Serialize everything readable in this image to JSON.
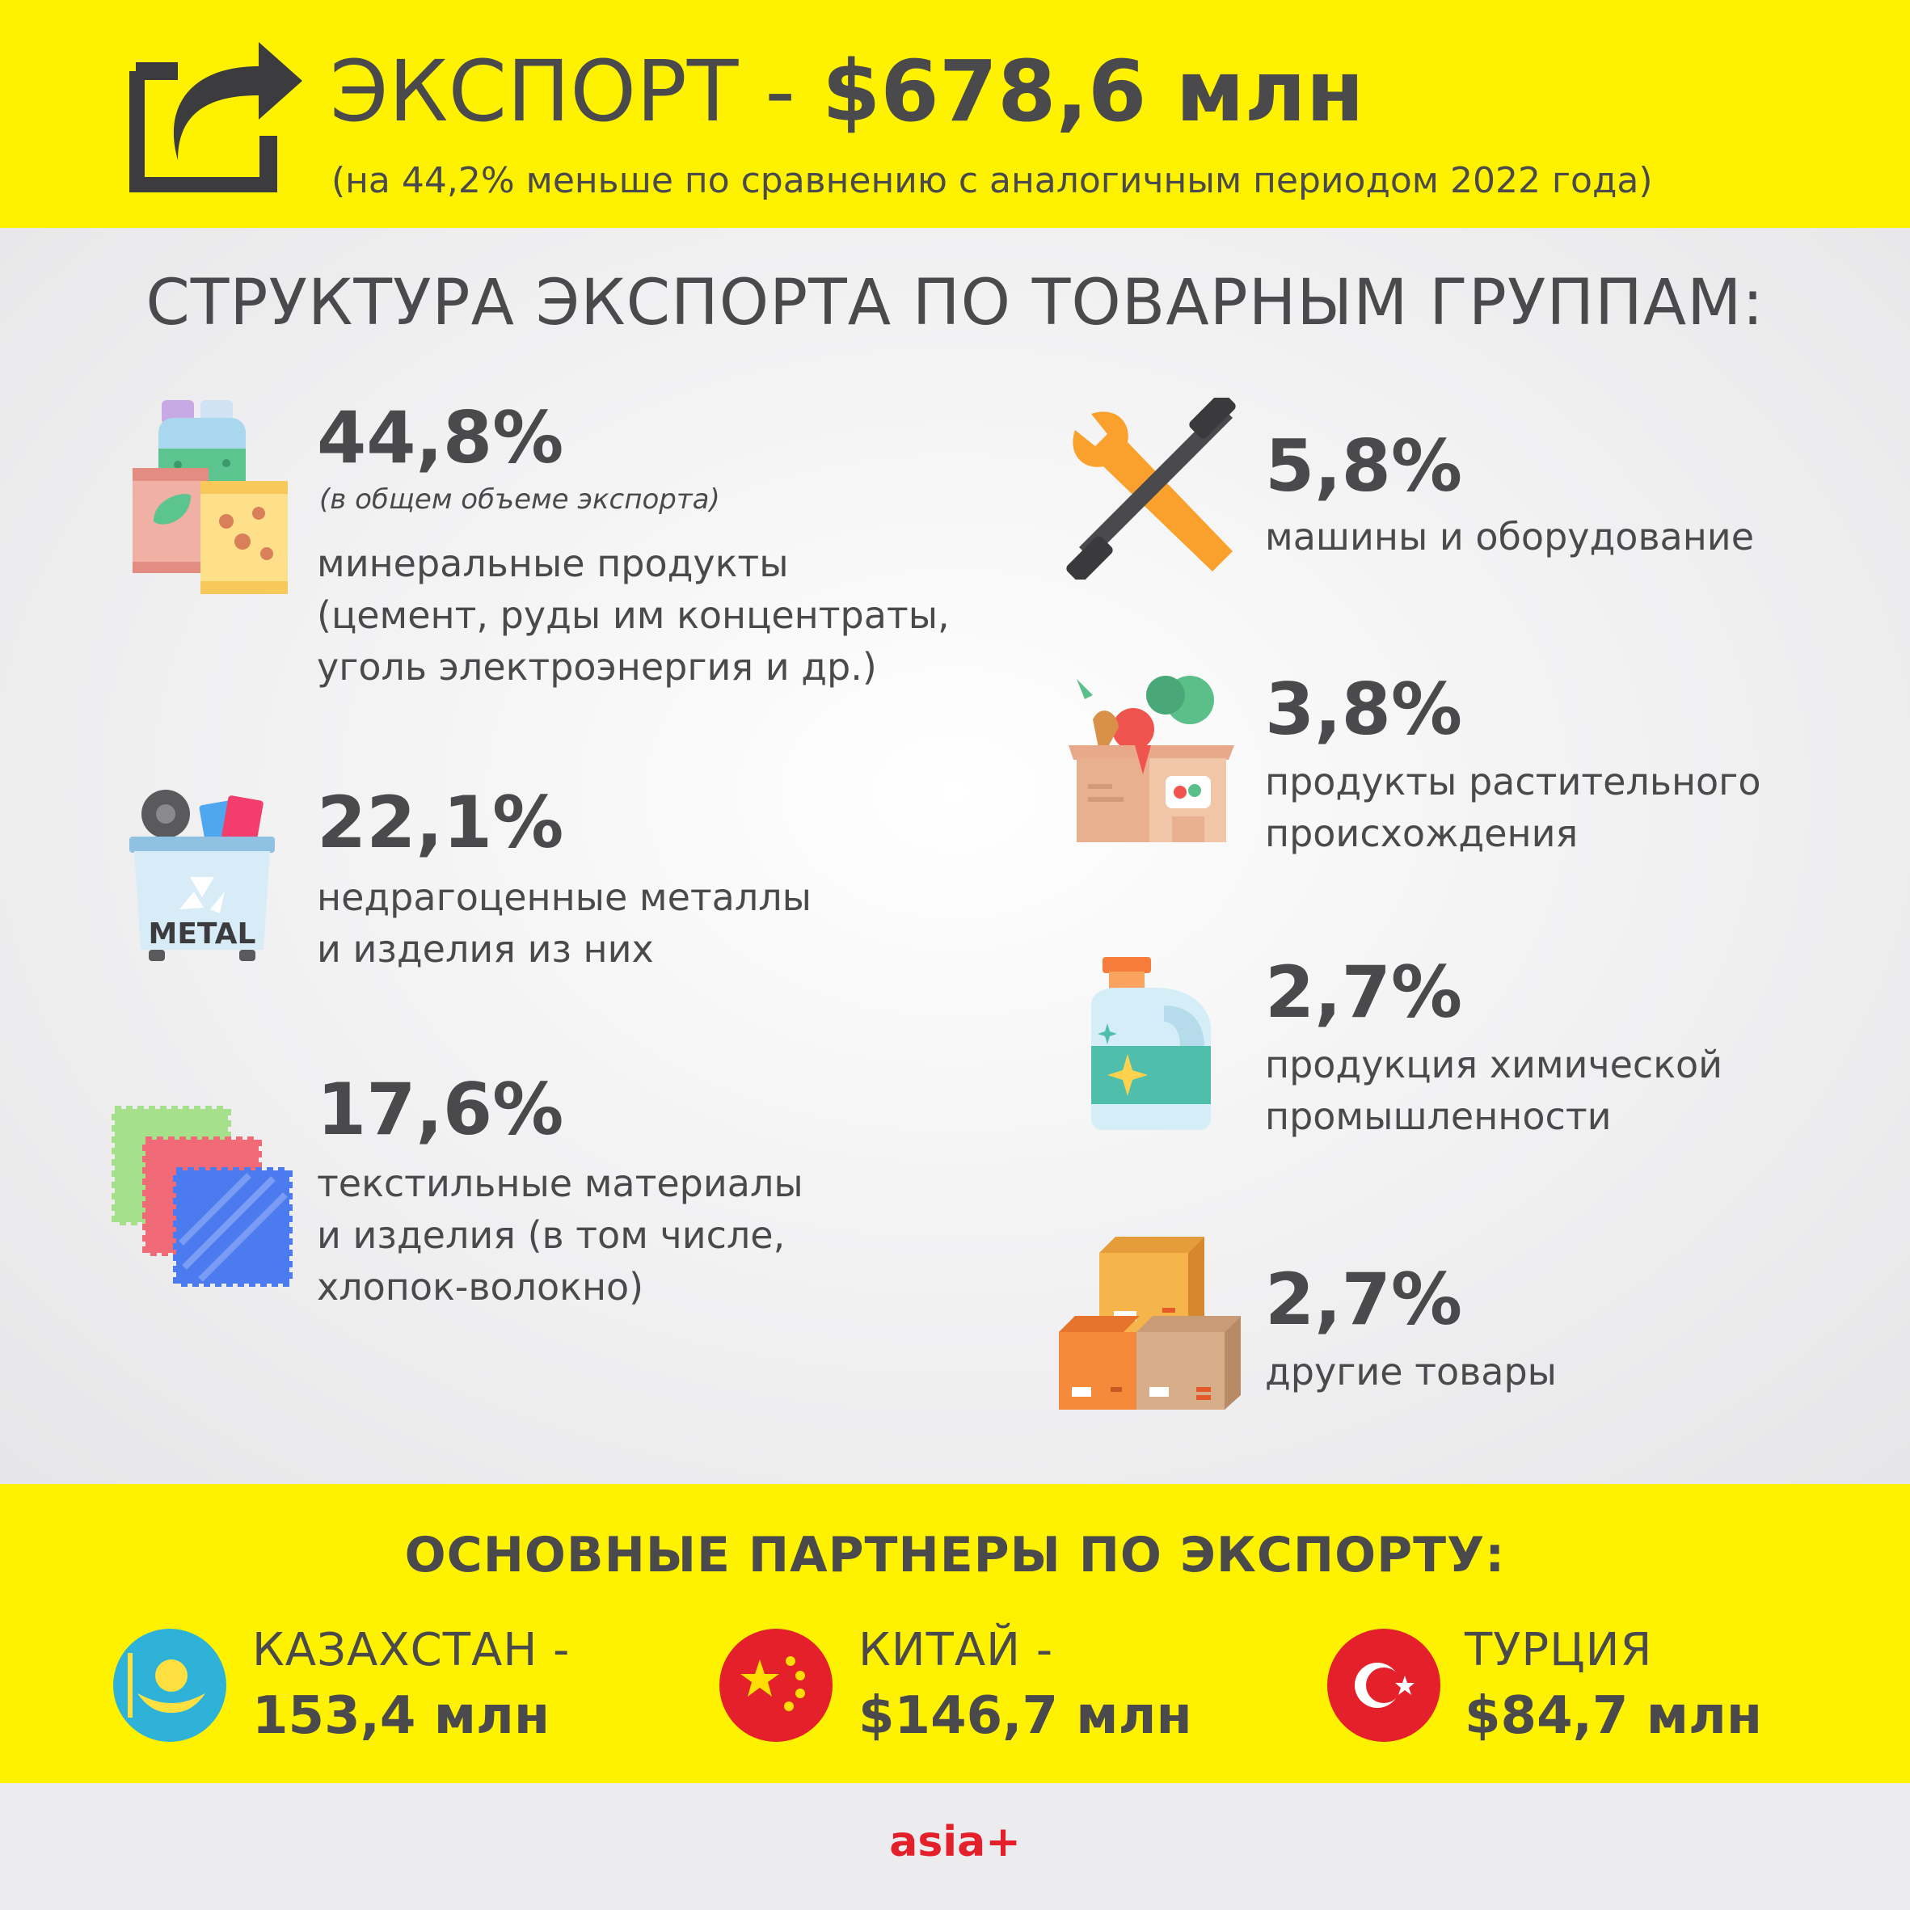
{
  "header": {
    "title_prefix": "ЭКСПОРТ - ",
    "title_value": "$678,6 млн",
    "subtitle": "(на 44,2% меньше по сравнению с аналогичным периодом 2022 года)"
  },
  "structure": {
    "title": "СТРУКТУРА ЭКСПОРТА ПО ТОВАРНЫМ ГРУППАМ:",
    "groups": [
      {
        "percent": "44,8%",
        "note": "(в общем объеме экспорта)",
        "lines": [
          "минеральные продукты",
          "(цемент, руды им концентраты,",
          "уголь электроэнергия и др.)"
        ],
        "icon": "mineral-bags-icon"
      },
      {
        "percent": "22,1%",
        "lines": [
          "недрагоценные металлы",
          "и изделия из них"
        ],
        "icon": "metal-bin-icon",
        "icon_label": "METAL"
      },
      {
        "percent": "17,6%",
        "lines": [
          "текстильные материалы",
          "и изделия (в том числе,",
          "хлопок-волокно)"
        ],
        "icon": "fabric-swatches-icon"
      },
      {
        "percent": "5,8%",
        "lines": [
          "машины и оборудование"
        ],
        "icon": "wrench-tools-icon"
      },
      {
        "percent": "3,8%",
        "lines": [
          "продукты растительного",
          "происхождения"
        ],
        "icon": "vegetable-box-icon"
      },
      {
        "percent": "2,7%",
        "lines": [
          "продукция химической",
          "промышленности"
        ],
        "icon": "chemical-bottle-icon"
      },
      {
        "percent": "2,7%",
        "lines": [
          "другие товары"
        ],
        "icon": "stacked-boxes-icon"
      }
    ]
  },
  "partners": {
    "title": "ОСНОВНЫЕ ПАРТНЕРЫ ПО ЭКСПОРТУ:",
    "items": [
      {
        "country": "КАЗАХСТАН -",
        "amount": "153,4 млн",
        "icon": "kazakhstan-flag-icon"
      },
      {
        "country": "КИТАЙ -",
        "amount": "$146,7 млн",
        "icon": "china-flag-icon"
      },
      {
        "country": "ТУРЦИЯ",
        "amount": "$84,7 млн",
        "icon": "turkey-flag-icon"
      }
    ]
  },
  "brand": "asia+",
  "colors": {
    "accent": "#fff200",
    "text": "#4a4a4c",
    "brand": "#e4212b"
  }
}
